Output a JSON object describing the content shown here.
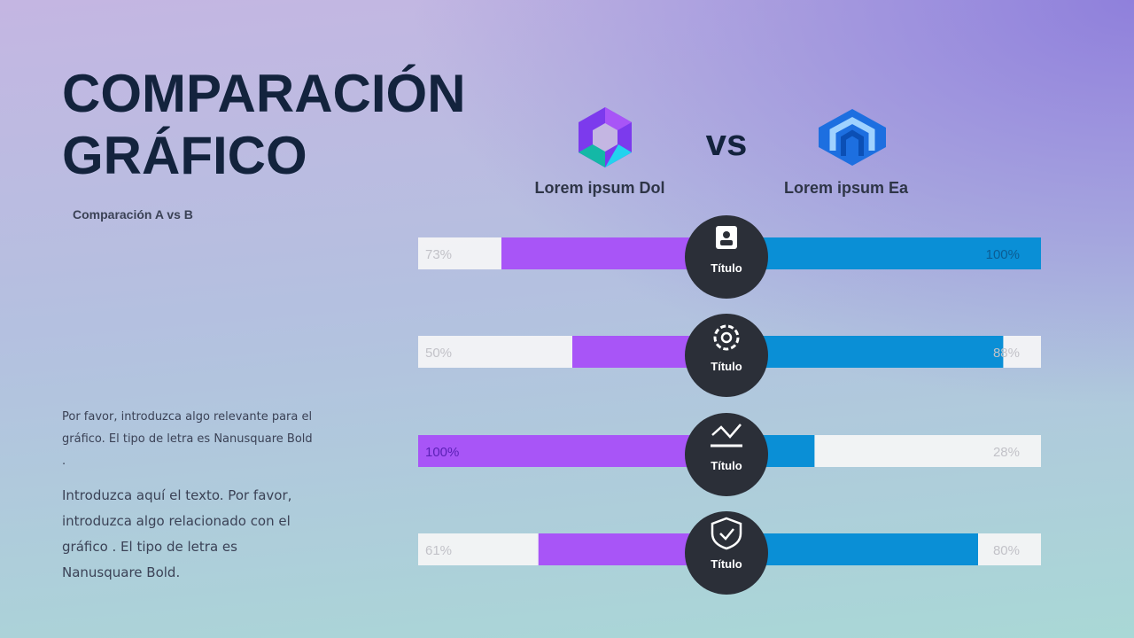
{
  "chart_data": {
    "type": "butterfly-bar",
    "title": [
      "COMPARACIÓN",
      "GRÁFICO"
    ],
    "subtitle": "Comparación A vs B",
    "vs_label": "vs",
    "categories": [
      "Título",
      "Título",
      "Título",
      "Título"
    ],
    "series": [
      {
        "name": "Lorem ipsum Dol",
        "color": "#a855f7",
        "values": [
          73,
          50,
          100,
          61
        ],
        "value_labels": [
          "73%",
          "50%",
          "100%",
          "61%"
        ]
      },
      {
        "name": "Lorem ipsum Ea",
        "color": "#0a8fd6",
        "values": [
          100,
          88,
          28,
          80
        ],
        "value_labels": [
          "100%",
          "88%",
          "28%",
          "80%"
        ]
      }
    ],
    "xlim": [
      0,
      100
    ]
  },
  "text_blocks": [
    "Por favor, introduzca algo relevante para el gráfico. El tipo de letra es Nanusquare Bold .",
    "Introduzca aquí el texto. Por favor, introduzca algo relacionado con el gráfico . El tipo de letra es Nanusquare Bold."
  ]
}
